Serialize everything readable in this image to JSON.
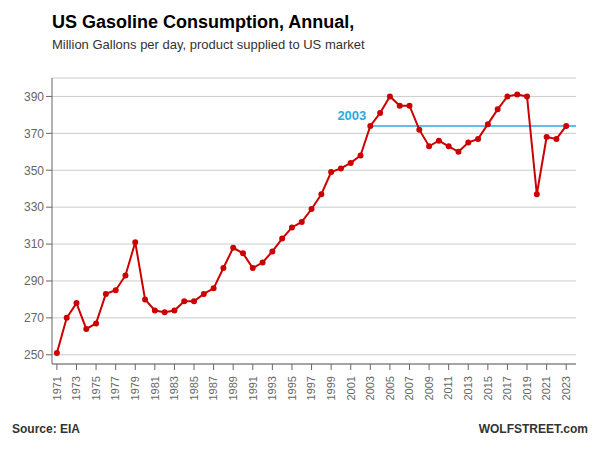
{
  "chart_data": {
    "type": "line",
    "title": "US Gasoline Consumption, Annual,",
    "subtitle": "Million  Gallons per day, product supplied to US market",
    "annotations": [
      "Source: EIA",
      "WOLFSTREET.com"
    ],
    "x": [
      1971,
      1972,
      1973,
      1974,
      1975,
      1976,
      1977,
      1978,
      1979,
      1980,
      1981,
      1982,
      1983,
      1984,
      1985,
      1986,
      1987,
      1988,
      1989,
      1990,
      1991,
      1992,
      1993,
      1994,
      1995,
      1996,
      1997,
      1998,
      1999,
      2000,
      2001,
      2002,
      2003,
      2004,
      2005,
      2006,
      2007,
      2008,
      2009,
      2010,
      2011,
      2012,
      2013,
      2014,
      2015,
      2016,
      2017,
      2018,
      2019,
      2020,
      2021,
      2022,
      2023
    ],
    "values": [
      251,
      270,
      278,
      264,
      267,
      283,
      285,
      293,
      311,
      280,
      274,
      273,
      274,
      279,
      279,
      283,
      286,
      297,
      308,
      305,
      297,
      300,
      306,
      313,
      319,
      322,
      329,
      337,
      349,
      351,
      354,
      358,
      374,
      381,
      390,
      385,
      385,
      372,
      363,
      366,
      363,
      360,
      365,
      367,
      375,
      383,
      390,
      391,
      390,
      337,
      368,
      367,
      374
    ],
    "color": "#cc0000",
    "marker": "circle",
    "reference_line": {
      "value": 374,
      "from_x": 2003,
      "label": "2003",
      "color": "#29abe2"
    },
    "xlim": [
      1970.5,
      2024.0
    ],
    "xticks": [
      1971,
      1973,
      1975,
      1977,
      1979,
      1981,
      1983,
      1985,
      1987,
      1989,
      1991,
      1993,
      1995,
      1997,
      1999,
      2001,
      2003,
      2005,
      2007,
      2009,
      2011,
      2013,
      2015,
      2017,
      2019,
      2021,
      2023
    ],
    "ylim": [
      245,
      400
    ],
    "yticks": [
      250,
      270,
      290,
      310,
      330,
      350,
      370,
      390
    ],
    "grid": true
  }
}
